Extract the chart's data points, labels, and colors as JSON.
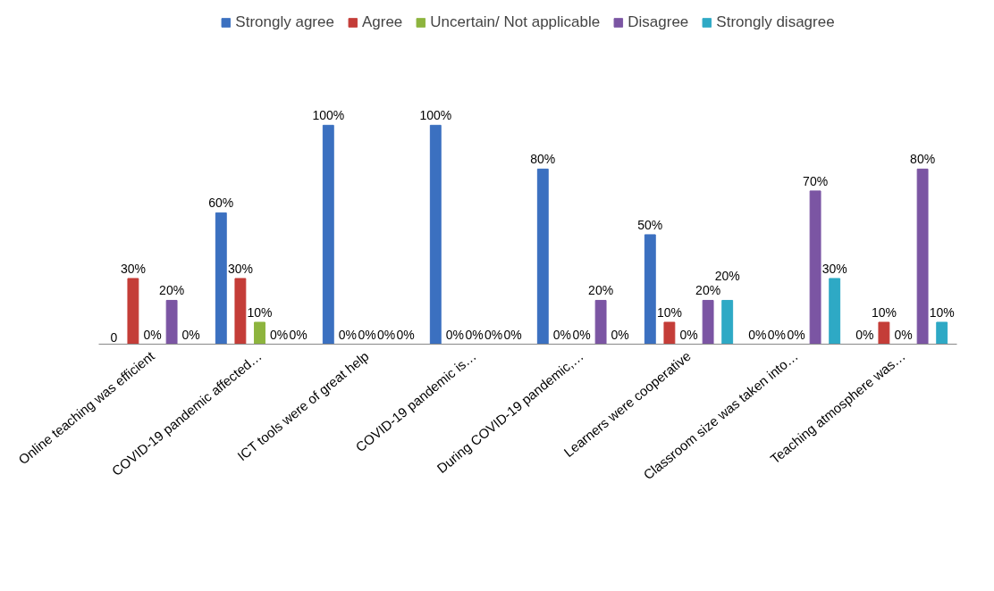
{
  "chart_data": {
    "type": "bar",
    "categories": [
      "Online teaching was efficient",
      "COVID-19 pandemic affected…",
      "ICT tools were of great help",
      "COVID-19 pandemic is…",
      "During COVID-19 pandemic,…",
      "Learners were cooperative",
      "Classroom size was taken into…",
      "Teaching atmosphere was…"
    ],
    "series": [
      {
        "name": "Strongly agree",
        "color": "#3b70c0",
        "values": [
          0,
          60,
          100,
          100,
          80,
          50,
          0,
          0
        ],
        "value_labels": [
          "0",
          "60%",
          "100%",
          "100%",
          "80%",
          "50%",
          "0%",
          "0%"
        ]
      },
      {
        "name": "Agree",
        "color": "#c43d38",
        "values": [
          30,
          30,
          0,
          0,
          0,
          10,
          0,
          10
        ],
        "value_labels": [
          "30%",
          "30%",
          "0%",
          "0%",
          "0%",
          "10%",
          "0%",
          "10%"
        ]
      },
      {
        "name": "Uncertain/ Not applicable",
        "color": "#8db43e",
        "values": [
          0,
          10,
          0,
          0,
          0,
          0,
          0,
          0
        ],
        "value_labels": [
          "0%",
          "10%",
          "0%",
          "0%",
          "0%",
          "0%",
          "0%",
          "0%"
        ]
      },
      {
        "name": "Disagree",
        "color": "#7b55a3",
        "values": [
          20,
          0,
          0,
          0,
          20,
          20,
          70,
          80
        ],
        "value_labels": [
          "20%",
          "0%",
          "0%",
          "0%",
          "20%",
          "20%",
          "70%",
          "80%"
        ]
      },
      {
        "name": "Strongly disagree",
        "color": "#2ea9c5",
        "values": [
          0,
          0,
          0,
          0,
          0,
          20,
          30,
          10
        ],
        "value_labels": [
          "0%",
          "0%",
          "0%",
          "0%",
          "0%",
          "20%",
          "30%",
          "10%"
        ]
      }
    ],
    "legend": "top",
    "grid": false
  }
}
